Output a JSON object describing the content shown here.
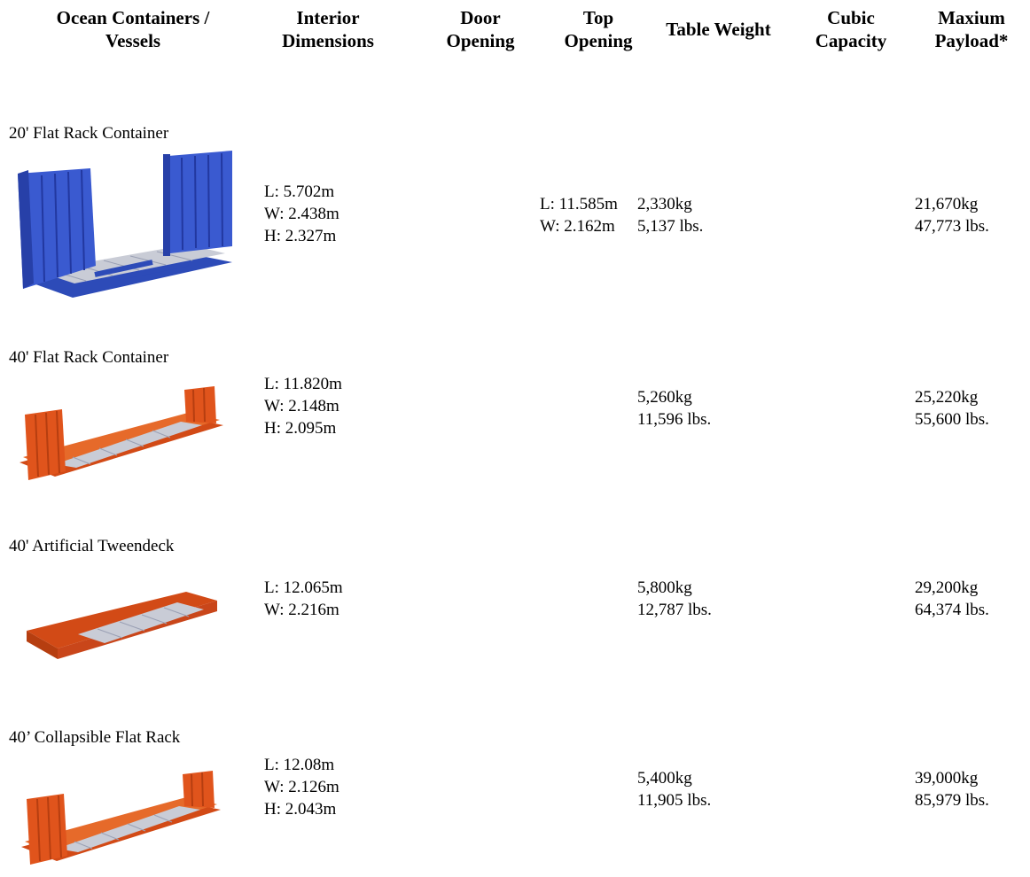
{
  "headers": {
    "vessels": "Ocean Containers /\nVessels",
    "interior": "Interior\nDimensions",
    "door": "Door\nOpening",
    "top": "Top\nOpening",
    "tare": "Table Weight",
    "cubic": "Cubic\nCapacity",
    "payload": "Maxium\nPayload*"
  },
  "rows": [
    {
      "name": "20' Flat Rack Container",
      "image": "blue-20ft-flat-rack-container",
      "color": "#2f4fc4",
      "dims": [
        "L: 5.702m",
        "W: 2.438m",
        "H: 2.327m"
      ],
      "top_opening": [
        "L: 11.585m",
        "W: 2.162m"
      ],
      "tare": [
        "2,330kg",
        "5,137 lbs."
      ],
      "payload": [
        "21,670kg",
        "47,773 lbs."
      ]
    },
    {
      "name": "40' Flat Rack Container",
      "image": "orange-40ft-flat-rack-container",
      "color": "#e0541c",
      "dims": [
        "L: 11.820m",
        "W: 2.148m",
        "H: 2.095m"
      ],
      "tare": [
        "5,260kg",
        "11,596 lbs."
      ],
      "payload": [
        "25,220kg",
        "55,600 lbs."
      ]
    },
    {
      "name": "40' Artificial Tweendeck",
      "image": "orange-40ft-artificial-tweendeck",
      "color": "#e0541c",
      "dims": [
        "L: 12.065m",
        "W: 2.216m"
      ],
      "tare": [
        "5,800kg",
        "12,787 lbs."
      ],
      "payload": [
        "29,200kg",
        "64,374 lbs."
      ]
    },
    {
      "name": "40’ Collapsible Flat Rack",
      "image": "orange-40ft-collapsible-flat-rack",
      "color": "#e0541c",
      "dims": [
        "L: 12.08m",
        "W: 2.126m",
        "H: 2.043m"
      ],
      "tare": [
        "5,400kg",
        "11,905 lbs."
      ],
      "payload": [
        "39,000kg",
        "85,979 lbs."
      ]
    }
  ]
}
